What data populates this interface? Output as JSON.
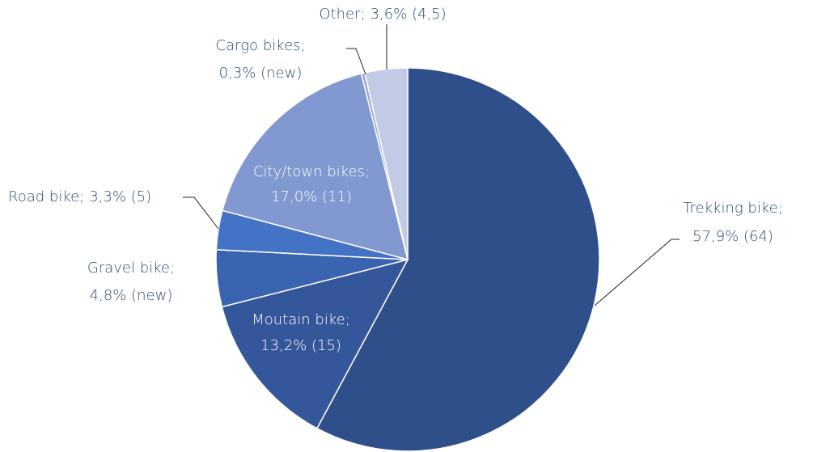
{
  "chart_data": {
    "type": "pie",
    "categories": [
      "Trekking bike",
      "Moutain bike",
      "Gravel bike",
      "Road bike",
      "City/town bikes",
      "Cargo bikes",
      "Other"
    ],
    "values": [
      57.9,
      13.2,
      4.8,
      3.3,
      17.0,
      0.3,
      3.6
    ],
    "value_labels": [
      "57,9% (64)",
      "13,2% (15)",
      "4,8% (new)",
      "3,3% (5)",
      "17,0% (11)",
      "0,3% (new)",
      "3,6% (4,5)"
    ],
    "label_separator": ";",
    "colors": [
      "#2f4f8a",
      "#34569a",
      "#3a64b0",
      "#4472c4",
      "#8198d0",
      "#9aa9d8",
      "#c1cbe6"
    ]
  }
}
